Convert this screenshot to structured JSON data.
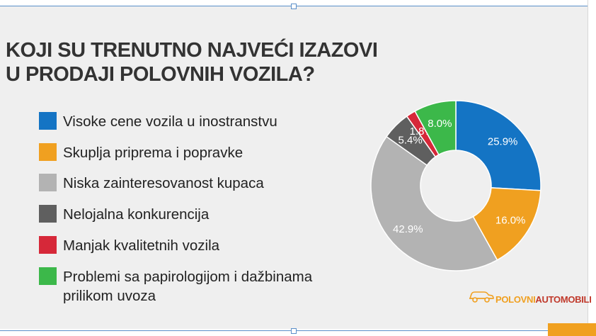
{
  "title": {
    "line1": "KOJI SU TRENUTNO NAJVEĆI IZAZOVI",
    "line2": "U PRODAJI POLOVNIH VOZILA?"
  },
  "chart_data": {
    "type": "pie",
    "variant": "donut",
    "title": "KOJI SU TRENUTNO NAJVEĆI IZAZOVI U PRODAJI POLOVNIH VOZILA?",
    "categories": [
      "Visoke cene vozila u inostranstvu",
      "Skuplja priprema i popravke",
      "Niska zainteresovanost kupaca",
      "Nelojalna konkurencija",
      "Manjak kvalitetnih vozila",
      "Problemi sa papirologijom i dažbinama prilikom uvoza"
    ],
    "values": [
      25.9,
      16.0,
      42.9,
      5.4,
      1.8,
      8.0
    ],
    "labels": [
      "25.9%",
      "16.0%",
      "42.9%",
      "5.4%",
      "1.8%",
      "8.0%"
    ],
    "colors": [
      "#1474c4",
      "#f0a020",
      "#b3b3b3",
      "#5f5f5f",
      "#d62839",
      "#3cb84a"
    ],
    "legend_position": "left",
    "legend_label_lines": [
      [
        "Visoke cene vozila u inostranstvu"
      ],
      [
        "Skuplja priprema i popravke"
      ],
      [
        "Niska zainteresovanost kupaca"
      ],
      [
        "Nelojalna konkurencija"
      ],
      [
        "Manjak kvalitetnih vozila"
      ],
      [
        "Problemi sa papirologijom i dažbinama",
        "prilikom uvoza"
      ]
    ]
  },
  "logo": {
    "part1": "POLOVNI",
    "part2": "AUTOMOBILI"
  }
}
